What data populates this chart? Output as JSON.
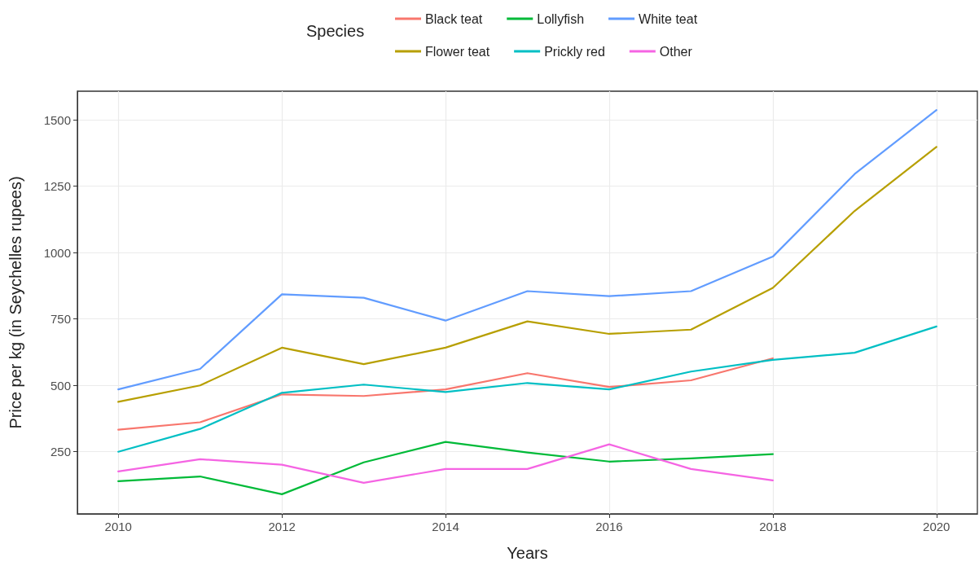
{
  "chart_data": {
    "type": "line",
    "xlabel": "Years",
    "ylabel": "Price per kg (in Seychelles rupees)",
    "legend_title": "Species",
    "legend": "top",
    "grid": true,
    "line_style": "solid",
    "marker": "none",
    "x": [
      2010,
      2011,
      2012,
      2013,
      2014,
      2015,
      2016,
      2017,
      2018,
      2019,
      2020
    ],
    "xlim": [
      2009.5,
      2020.5
    ],
    "xticks": [
      2010,
      2012,
      2014,
      2016,
      2018,
      2020
    ],
    "ylim": [
      16,
      1608
    ],
    "yticks": [
      250,
      500,
      750,
      1000,
      1250,
      1500
    ],
    "series": [
      {
        "name": "Black teat",
        "color": "#f8766d",
        "values": [
          333,
          361,
          466,
          460,
          485,
          546,
          494,
          519,
          602,
          null,
          null
        ]
      },
      {
        "name": "Flower teat",
        "color": "#b79f00",
        "values": [
          438,
          500,
          642,
          580,
          642,
          741,
          694,
          710,
          867,
          1157,
          1398
        ]
      },
      {
        "name": "Lollyfish",
        "color": "#00ba38",
        "values": [
          139,
          157,
          90,
          210,
          287,
          247,
          213,
          225,
          241,
          null,
          null
        ]
      },
      {
        "name": "Prickly red",
        "color": "#00bfc4",
        "values": [
          250,
          336,
          472,
          503,
          475,
          509,
          485,
          552,
          596,
          623,
          722
        ]
      },
      {
        "name": "White teat",
        "color": "#619cff",
        "values": [
          485,
          562,
          843,
          830,
          744,
          855,
          836,
          855,
          985,
          1296,
          1537
        ]
      },
      {
        "name": "Other",
        "color": "#f564e3",
        "values": [
          176,
          222,
          201,
          133,
          185,
          185,
          278,
          185,
          142,
          null,
          null
        ]
      }
    ]
  }
}
